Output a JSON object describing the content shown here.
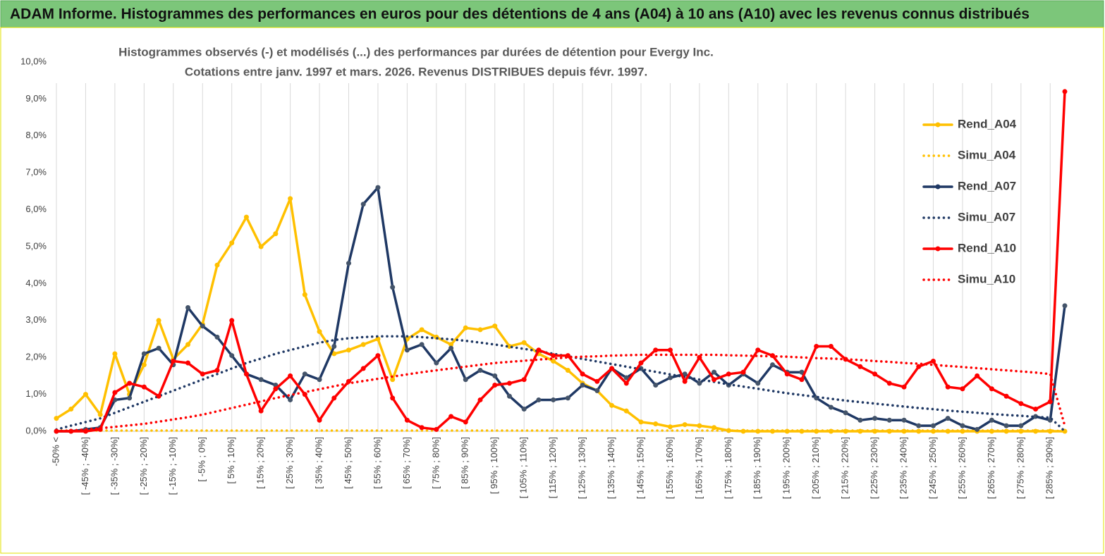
{
  "chart_data": {
    "type": "line",
    "title": "ADAM Informe. Histogrammes des performances en euros pour des détentions de 4 ans (A04) à 10 ans (A10) avec les revenus connus distribués",
    "subtitle": [
      "Histogrammes observés (-) et modélisés (...) des performances par durées de détention pour Evergy Inc.",
      "Cotations entre janv. 1997 et mars. 2026. Revenus DISTRIBUES depuis févr. 1997."
    ],
    "categories": [
      "-50% <",
      null,
      "[ -45% ; -40%]",
      null,
      "[ -35% ; -30%]",
      null,
      "[ -25% ; -20%]",
      null,
      "[ -15% ; -10%]",
      null,
      "[ -5% ; 0%]",
      null,
      "[ 5% ; 10%]",
      null,
      "[ 15% ; 20%]",
      null,
      "[ 25% ; 30%]",
      null,
      "[ 35% ; 40%]",
      null,
      "[ 45% ; 50%]",
      null,
      "[ 55% ; 60%]",
      null,
      "[ 65% ; 70%]",
      null,
      "[ 75% ; 80%]",
      null,
      "[ 85% ; 90%]",
      null,
      "[ 95% ; 100%]",
      null,
      "[ 105% ; 110%]",
      null,
      "[ 115% ; 120%]",
      null,
      "[ 125% ; 130%]",
      null,
      "[ 135% ; 140%]",
      null,
      "[ 145% ; 150%]",
      null,
      "[ 155% ; 160%]",
      null,
      "[ 165% ; 170%]",
      null,
      "[ 175% ; 180%]",
      null,
      "[ 185% ; 190%]",
      null,
      "[ 195% ; 200%]",
      null,
      "[ 205% ; 210%]",
      null,
      "[ 215% ; 220%]",
      null,
      "[ 225% ; 230%]",
      null,
      "[ 235% ; 240%]",
      null,
      "[ 245% ; 250%]",
      null,
      "[ 255% ; 260%]",
      null,
      "[ 265% ; 270%]",
      null,
      "[ 275% ; 280%]",
      null,
      "[ 285% ; 290%]",
      null
    ],
    "series": [
      {
        "name": "Rend_A04",
        "color": "#ffc000",
        "dash": "solid",
        "marker": "circle",
        "values": [
          0.35,
          0.6,
          1.0,
          0.45,
          2.1,
          1.0,
          1.8,
          3.0,
          1.95,
          2.35,
          2.9,
          4.5,
          5.1,
          5.8,
          5.0,
          5.35,
          6.3,
          3.7,
          2.7,
          2.1,
          2.2,
          2.35,
          2.5,
          1.4,
          2.5,
          2.75,
          2.55,
          2.35,
          2.8,
          2.75,
          2.85,
          2.3,
          2.4,
          2.1,
          1.9,
          1.65,
          1.3,
          1.1,
          0.7,
          0.55,
          0.25,
          0.2,
          0.12,
          0.18,
          0.15,
          0.1,
          0.02,
          0,
          0,
          0,
          0,
          0,
          0,
          0,
          0,
          0,
          0,
          0,
          0,
          0,
          0,
          0,
          0,
          0,
          0,
          0,
          0,
          0,
          0,
          0
        ]
      },
      {
        "name": "Simu_A04",
        "color": "#ffc000",
        "dash": "dotted",
        "marker": "none",
        "values": [
          0.02,
          0.02,
          0.02,
          0.02,
          0.02,
          0.02,
          0.02,
          0.02,
          0.02,
          0.02,
          0.02,
          0.02,
          0.02,
          0.02,
          0.02,
          0.02,
          0.02,
          0.02,
          0.02,
          0.02,
          0.02,
          0.02,
          0.02,
          0.02,
          0.02,
          0.02,
          0.02,
          0.02,
          0.02,
          0.02,
          0.02,
          0.02,
          0.02,
          0.02,
          0.02,
          0.02,
          0.02,
          0.02,
          0.02,
          0.02,
          0.02,
          0.02,
          0.02,
          0.02,
          0.02,
          0.02,
          0.02,
          0.02,
          0.02,
          0.02,
          0.02,
          0.02,
          0.02,
          0.02,
          0.02,
          0.02,
          0.02,
          0.02,
          0.02,
          0.02,
          0.02,
          0.02,
          0.02,
          0.02,
          0.02,
          0.02,
          0.02,
          0.02,
          0.02,
          0
        ]
      },
      {
        "name": "Rend_A07",
        "color": "#1f3864",
        "dash": "solid",
        "marker": "circle",
        "values": [
          0,
          0,
          0.05,
          0.1,
          0.85,
          0.9,
          2.1,
          2.25,
          1.8,
          3.35,
          2.85,
          2.55,
          2.05,
          1.55,
          1.4,
          1.25,
          0.85,
          1.55,
          1.4,
          2.3,
          4.55,
          6.15,
          6.6,
          3.9,
          2.2,
          2.35,
          1.85,
          2.25,
          1.4,
          1.65,
          1.5,
          0.95,
          0.6,
          0.85,
          0.85,
          0.9,
          1.25,
          1.1,
          1.7,
          1.45,
          1.7,
          1.25,
          1.45,
          1.55,
          1.3,
          1.6,
          1.25,
          1.55,
          1.3,
          1.8,
          1.6,
          1.6,
          0.9,
          0.65,
          0.5,
          0.3,
          0.35,
          0.3,
          0.3,
          0.15,
          0.15,
          0.35,
          0.15,
          0.05,
          0.3,
          0.15,
          0.15,
          0.4,
          0.3,
          3.4
        ]
      },
      {
        "name": "Simu_A07",
        "color": "#1f3864",
        "dash": "dotted",
        "marker": "none",
        "values": [
          0.05,
          0.15,
          0.25,
          0.35,
          0.5,
          0.65,
          0.8,
          0.95,
          1.1,
          1.25,
          1.4,
          1.55,
          1.7,
          1.85,
          1.97,
          2.1,
          2.2,
          2.3,
          2.4,
          2.47,
          2.52,
          2.55,
          2.57,
          2.57,
          2.57,
          2.55,
          2.52,
          2.49,
          2.45,
          2.4,
          2.35,
          2.29,
          2.23,
          2.17,
          2.1,
          2.03,
          1.96,
          1.89,
          1.82,
          1.75,
          1.68,
          1.61,
          1.54,
          1.47,
          1.4,
          1.34,
          1.27,
          1.21,
          1.15,
          1.09,
          1.03,
          0.98,
          0.93,
          0.88,
          0.83,
          0.79,
          0.75,
          0.71,
          0.67,
          0.63,
          0.6,
          0.56,
          0.53,
          0.5,
          0.47,
          0.44,
          0.42,
          0.39,
          0.37,
          0
        ]
      },
      {
        "name": "Rend_A10",
        "color": "#ff0000",
        "dash": "solid",
        "marker": "circle",
        "values": [
          0,
          0,
          0,
          0.05,
          1.05,
          1.3,
          1.2,
          0.95,
          1.9,
          1.85,
          1.55,
          1.65,
          3.0,
          1.55,
          0.55,
          1.15,
          1.5,
          1.0,
          0.3,
          0.9,
          1.35,
          1.7,
          2.05,
          0.9,
          0.3,
          0.1,
          0.05,
          0.4,
          0.25,
          0.85,
          1.25,
          1.3,
          1.4,
          2.2,
          2.05,
          2.05,
          1.55,
          1.35,
          1.7,
          1.3,
          1.85,
          2.2,
          2.2,
          1.35,
          2.0,
          1.4,
          1.55,
          1.6,
          2.2,
          2.05,
          1.55,
          1.4,
          2.3,
          2.3,
          1.95,
          1.75,
          1.55,
          1.3,
          1.2,
          1.75,
          1.9,
          1.2,
          1.15,
          1.5,
          1.15,
          0.95,
          0.75,
          0.6,
          0.8,
          9.2
        ]
      },
      {
        "name": "Simu_A10",
        "color": "#ff0000",
        "dash": "dotted",
        "marker": "none",
        "values": [
          0,
          0.02,
          0.05,
          0.08,
          0.12,
          0.16,
          0.2,
          0.26,
          0.32,
          0.38,
          0.45,
          0.54,
          0.63,
          0.72,
          0.81,
          0.9,
          0.98,
          1.06,
          1.14,
          1.22,
          1.3,
          1.36,
          1.42,
          1.48,
          1.54,
          1.6,
          1.65,
          1.7,
          1.75,
          1.8,
          1.85,
          1.88,
          1.91,
          1.94,
          1.97,
          2.0,
          2.02,
          2.03,
          2.05,
          2.06,
          2.07,
          2.07,
          2.07,
          2.07,
          2.07,
          2.07,
          2.06,
          2.05,
          2.04,
          2.03,
          2.02,
          2.0,
          1.98,
          1.97,
          1.95,
          1.93,
          1.9,
          1.88,
          1.85,
          1.83,
          1.8,
          1.77,
          1.74,
          1.71,
          1.68,
          1.65,
          1.62,
          1.59,
          1.55,
          0.15
        ]
      }
    ],
    "ylim": [
      0,
      10
    ],
    "yticks": [
      {
        "value": 0,
        "label": "0,0%"
      },
      {
        "value": 1,
        "label": "1,0%"
      },
      {
        "value": 2,
        "label": "2,0%"
      },
      {
        "value": 3,
        "label": "3,0%"
      },
      {
        "value": 4,
        "label": "4,0%"
      },
      {
        "value": 5,
        "label": "5,0%"
      },
      {
        "value": 6,
        "label": "6,0%"
      },
      {
        "value": 7,
        "label": "7,0%"
      },
      {
        "value": 8,
        "label": "8,0%"
      },
      {
        "value": 9,
        "label": "9,0%"
      },
      {
        "value": 10,
        "label": "10,0%"
      }
    ],
    "grid": "x",
    "legend": "upper right"
  }
}
